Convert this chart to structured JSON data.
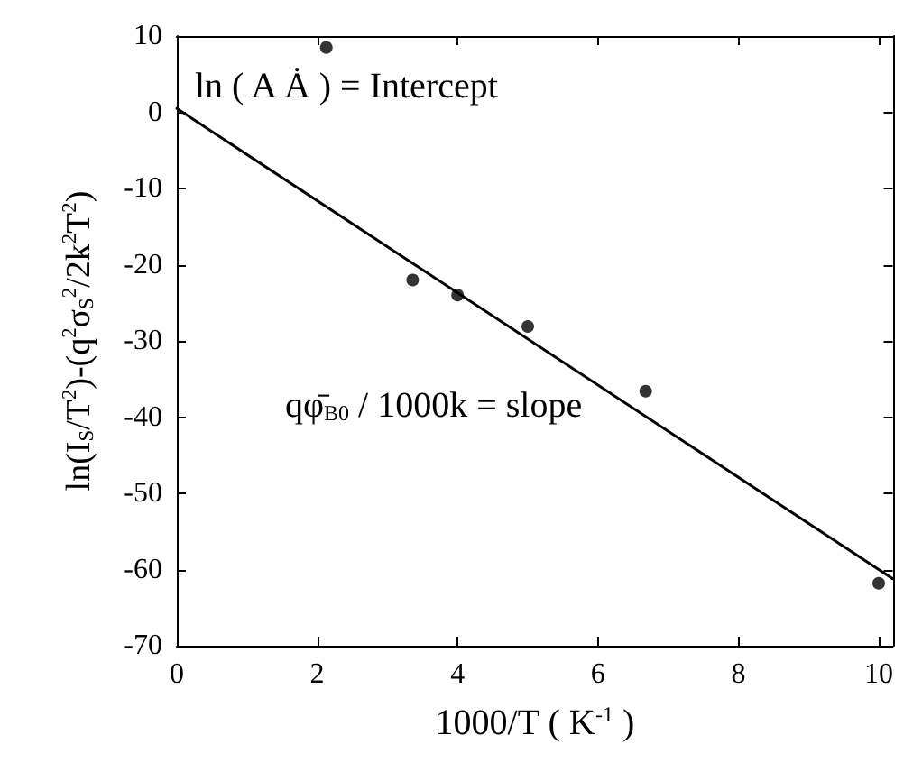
{
  "chart_data": {
    "type": "scatter",
    "xlabel": "1000/T ( K$^{-1}$ )",
    "ylabel": "ln(I$_{S}$/T$^{2}$)-(q$^{2}$σ$_{S}$$^{2}$/2k$^{2}$T$^{2}$)",
    "xlim": [
      0,
      10.2
    ],
    "xticks": [
      0,
      2,
      4,
      6,
      8,
      10
    ],
    "ylim": [
      -70,
      10
    ],
    "yticks": [
      -70,
      -60,
      -50,
      -40,
      -30,
      -20,
      -10,
      0,
      10
    ],
    "grid": false,
    "series": [
      {
        "color": "#000000",
        "marker": "circle",
        "x": [
          2.13,
          3.36,
          4.0,
          5.0,
          6.68,
          10.0
        ],
        "values": [
          8.5,
          -22.0,
          -24.0,
          -28.1,
          -36.6,
          -61.8
        ]
      },
      {
        "type": "line",
        "color": "#000000",
        "marker": "none",
        "line_style": "solid",
        "x": [
          0,
          10.2
        ],
        "values": [
          0.5,
          -61.2
        ]
      }
    ],
    "annotations": [
      "ln ( A Ȧ ) = Intercept",
      "qφ̄$_{B0}$ / 1000k = slope"
    ]
  }
}
